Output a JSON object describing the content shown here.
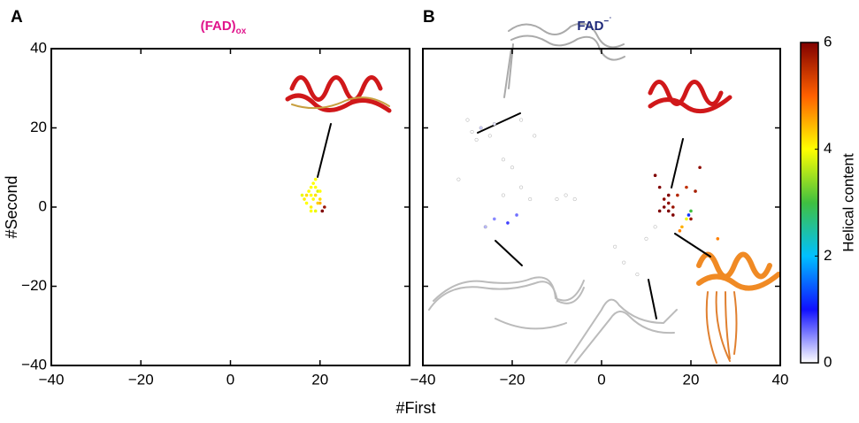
{
  "chart_data": [
    {
      "type": "scatter",
      "panel": "A",
      "title": "(FAD)",
      "title_sub": "ox",
      "title_color": "#e0148c",
      "xlabel": "#First",
      "ylabel": "#Second",
      "xlim": [
        -40,
        40
      ],
      "ylim": [
        -40,
        40
      ],
      "xticks": [
        {
          "value": -40,
          "label": "−40"
        },
        {
          "value": -20,
          "label": "−20"
        },
        0,
        20
      ],
      "yticks": [
        {
          "value": -40,
          "label": "−40"
        },
        {
          "value": -20,
          "label": "−20"
        },
        0,
        20,
        40
      ],
      "ytick_labels": true,
      "x": [
        18,
        19,
        18.5,
        19.5,
        18,
        17,
        19,
        20,
        18,
        19,
        17.5,
        20,
        19,
        16,
        21,
        20.5,
        18.5,
        19.5,
        18,
        17,
        20,
        16.5
      ],
      "y": [
        5,
        3,
        2,
        4,
        0,
        1,
        7,
        1,
        3,
        -1,
        4,
        2,
        5,
        3,
        0,
        -1,
        6,
        1,
        -1,
        3,
        4,
        2
      ],
      "helical": [
        4,
        4.2,
        4,
        3.8,
        4.1,
        4,
        4,
        4.5,
        4,
        3.9,
        4,
        4.2,
        4,
        3.9,
        5.8,
        6,
        4,
        4.3,
        4,
        4.2,
        4,
        4.1
      ]
    },
    {
      "type": "scatter",
      "panel": "B",
      "title": "FAD",
      "title_sup": "−˙",
      "title_color": "#1f2a7a",
      "xlim": [
        -40,
        40
      ],
      "ylim": [
        -40,
        40
      ],
      "xticks": [
        {
          "value": -40,
          "label": "−40"
        },
        {
          "value": -20,
          "label": "−20"
        },
        0,
        20,
        40
      ],
      "yticks": [
        -40,
        -20,
        0,
        20,
        40
      ],
      "ytick_labels": false,
      "x": [
        -30,
        -27,
        -25,
        -28,
        -24,
        -29,
        -22,
        -20,
        -32,
        -18,
        -22,
        -16,
        -19,
        -21,
        -24,
        -26,
        -10,
        -8,
        -6,
        3,
        5,
        8,
        10,
        12,
        -15,
        -18,
        14,
        15,
        13,
        16,
        15,
        14,
        17,
        19,
        21,
        20,
        13,
        12,
        22,
        16,
        15,
        18,
        19,
        20,
        19.5,
        17.5,
        26
      ],
      "y": [
        22,
        20,
        18,
        17,
        21,
        19,
        12,
        10,
        7,
        5,
        3,
        2,
        -2,
        -4,
        -3,
        -5,
        2,
        3,
        2,
        -10,
        -14,
        -17,
        -8,
        -5,
        18,
        22,
        0,
        1,
        -1,
        0,
        -1,
        2,
        3,
        5,
        4,
        -3,
        5,
        8,
        10,
        -2,
        3,
        -5,
        -3,
        -1,
        -2,
        -6,
        -8
      ],
      "helical": [
        0,
        0.2,
        0,
        0,
        0.1,
        0,
        0,
        0,
        0,
        0,
        0,
        0,
        0.6,
        0.8,
        0.5,
        0.3,
        0,
        0,
        0,
        0,
        0,
        0,
        0,
        0,
        0,
        0,
        6,
        5.9,
        6,
        5.8,
        6,
        5.9,
        5.6,
        5.5,
        5.7,
        5.8,
        6,
        6,
        5.9,
        6,
        6,
        4.5,
        3.9,
        3,
        1.2,
        4.8,
        4.8
      ],
      "colorbar": {
        "label": "Helical content",
        "lim": [
          0,
          6
        ],
        "ticks": [
          0,
          2,
          4,
          6
        ],
        "colormap": [
          "#ffffff",
          "#1010ff",
          "#00c0ff",
          "#40c040",
          "#ffff00",
          "#ff6000",
          "#800000"
        ]
      }
    }
  ]
}
